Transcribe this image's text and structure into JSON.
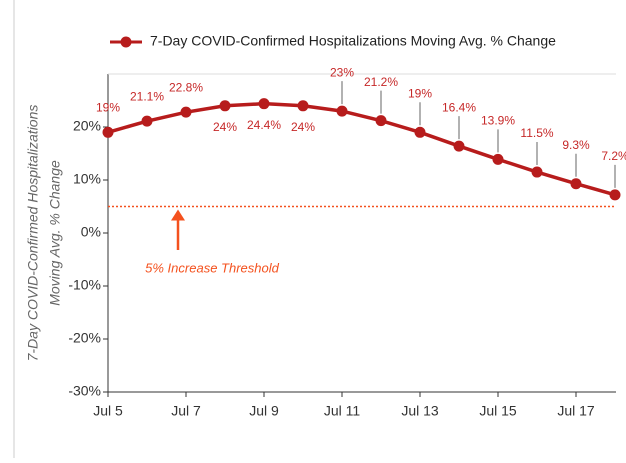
{
  "chart_data": {
    "type": "line",
    "ylabel": [
      "7-Day COVID-Confirmed Hospitalizations",
      "Moving Avg. % Change"
    ],
    "categories": [
      "Jul 5",
      null,
      "Jul 7",
      null,
      "Jul 9",
      null,
      "Jul 11",
      null,
      "Jul 13",
      null,
      "Jul 15",
      null,
      "Jul 17",
      null
    ],
    "series": [
      {
        "name": "7-Day COVID-Confirmed Hospitalizations Moving Avg. % Change",
        "color": "#b71c1c",
        "values": [
          19,
          21.1,
          22.8,
          24,
          24.4,
          24,
          23,
          21.2,
          19,
          16.4,
          13.9,
          11.5,
          9.3,
          7.2
        ],
        "value_labels": [
          "19%",
          "21.1%",
          "22.8%",
          "24%",
          "24.4%",
          "24%",
          "23%",
          "21.2%",
          "19%",
          "16.4%",
          "13.9%",
          "11.5%",
          "9.3%",
          "7.2%"
        ]
      }
    ],
    "ylim": [
      -30,
      30
    ],
    "yticks": [
      {
        "value": -30,
        "label": "-30%"
      },
      {
        "value": -20,
        "label": "-20%"
      },
      {
        "value": -10,
        "label": "-10%"
      },
      {
        "value": 0,
        "label": "0%"
      },
      {
        "value": 10,
        "label": "10%"
      },
      {
        "value": 20,
        "label": "20%"
      }
    ],
    "threshold": {
      "value": 5,
      "label": "5% Increase Threshold",
      "color": "#f4511e"
    },
    "legend": "top-right"
  }
}
